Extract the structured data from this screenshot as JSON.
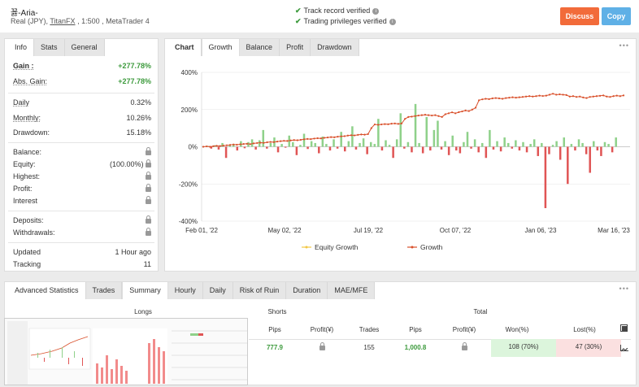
{
  "header": {
    "account_name": "꾫-Aria-",
    "account_type": "Real (JPY),",
    "broker": "TitanFX",
    "leverage_platform": ", 1:500 , MetaTrader 4",
    "verified_1": "Track record verified",
    "verified_2": "Trading privileges verified",
    "discuss_label": "Discuss",
    "copy_label": "Copy",
    "colors": {
      "discuss": "#f26b3a",
      "copy": "#5fb0e6",
      "check": "#3c9a3c"
    }
  },
  "info_panel": {
    "tabs": [
      "Info",
      "Stats",
      "General"
    ],
    "gain": {
      "label": "Gain :",
      "value": "+277.78%"
    },
    "abs_gain": {
      "label": "Abs. Gain:",
      "value": "+277.78%"
    },
    "daily": {
      "label": "Daily",
      "value": "0.32%"
    },
    "monthly": {
      "label": "Monthly:",
      "value": "10.26%"
    },
    "drawdown": {
      "label": "Drawdown:",
      "value": "15.18%"
    },
    "balance": {
      "label": "Balance:"
    },
    "equity": {
      "label": "Equity:",
      "value": "(100.00%)"
    },
    "highest": {
      "label": "Highest:"
    },
    "profit": {
      "label": "Profit:"
    },
    "interest": {
      "label": "Interest"
    },
    "deposits": {
      "label": "Deposits:"
    },
    "withdrawals": {
      "label": "Withdrawals:"
    },
    "updated": {
      "label": "Updated",
      "value": "1 Hour ago"
    },
    "tracking": {
      "label": "Tracking",
      "value": "11"
    }
  },
  "chart_panel": {
    "tabs": [
      "Chart",
      "Growth",
      "Balance",
      "Profit",
      "Drawdown"
    ],
    "menu": "•••"
  },
  "chart_data": {
    "type": "line",
    "title": "",
    "ylim": [
      -400,
      400
    ],
    "y_ticks": [
      "400%",
      "200%",
      "0%",
      "-200%",
      "-400%"
    ],
    "x_ticks": [
      "Feb 01, '22",
      "May 02, '22",
      "Jul 19, '22",
      "Oct 07, '22",
      "Jan 06, '23",
      "Mar 16, '23"
    ],
    "legend": {
      "placement": "bottom",
      "entries": [
        "Equity Growth",
        "Growth"
      ]
    },
    "series_colors": {
      "equity": "#f2c744",
      "growth": "#d9502b",
      "pos_bar": "#8fd18a",
      "neg_bar": "#e05555"
    },
    "growth": [
      0,
      2,
      0,
      3,
      5,
      4,
      6,
      8,
      10,
      12,
      11,
      13,
      15,
      16,
      14,
      18,
      20,
      22,
      21,
      24,
      26,
      25,
      28,
      30,
      32,
      31,
      34,
      36,
      35,
      37,
      40,
      42,
      41,
      44,
      46,
      45,
      48,
      50,
      52,
      51,
      54,
      56,
      57,
      60,
      62,
      61,
      64,
      66,
      65,
      68,
      100,
      120,
      118,
      120,
      122,
      121,
      124,
      125,
      123,
      125,
      150,
      160,
      162,
      165,
      168,
      170,
      172,
      170,
      168,
      170,
      165,
      160,
      175,
      180,
      185,
      180,
      186,
      190,
      195,
      192,
      200,
      210,
      250,
      255,
      258,
      256,
      260,
      262,
      260,
      258,
      262,
      264,
      266,
      264,
      266,
      268,
      270,
      272,
      270,
      272,
      275,
      273,
      275,
      280,
      285,
      280,
      282,
      280,
      278,
      270,
      272,
      268,
      270,
      265,
      262,
      268,
      270,
      272,
      274,
      276,
      270,
      268,
      272,
      275,
      272,
      276
    ],
    "bars": [
      5,
      -10,
      8,
      -15,
      20,
      -60,
      10,
      15,
      -20,
      30,
      -8,
      25,
      40,
      -15,
      35,
      90,
      -10,
      20,
      50,
      -30,
      15,
      -5,
      60,
      25,
      -45,
      10,
      70,
      -12,
      30,
      20,
      -35,
      55,
      15,
      -20,
      40,
      -10,
      80,
      -25,
      30,
      110,
      -15,
      20,
      45,
      -40,
      25,
      15,
      150,
      -20,
      35,
      10,
      -60,
      40,
      180,
      -10,
      25,
      -30,
      230,
      20,
      -35,
      160,
      -20,
      90,
      140,
      -15,
      30,
      -45,
      60,
      -20,
      -35,
      25,
      80,
      -10,
      40,
      -30,
      20,
      -60,
      90,
      -15,
      30,
      -25,
      50,
      20,
      -10,
      35,
      -20,
      25,
      -30,
      15,
      40,
      -50,
      20,
      -330,
      -40,
      10,
      30,
      -70,
      50,
      -200,
      15,
      -20,
      40,
      20,
      -40,
      -140,
      30,
      -20,
      -50,
      25,
      15,
      -30,
      50
    ]
  },
  "bottom_panel": {
    "tabs": [
      "Advanced Statistics",
      "Trades",
      "Summary",
      "Hourly",
      "Daily",
      "Risk of Ruin",
      "Duration",
      "MAE/MFE"
    ],
    "menu": "•••",
    "group_longs": "Longs",
    "group_shorts": "Shorts",
    "group_total": "Total",
    "columns": [
      "Pips",
      "Profit(¥)",
      "Trades",
      "Pips",
      "Profit(¥)",
      "Won(%)",
      "Lost(%)"
    ],
    "row": {
      "shorts_pips": "777.9",
      "total_trades": "155",
      "total_pips": "1,000.8",
      "won": "108 (70%)",
      "lost": "47 (30%)"
    }
  }
}
